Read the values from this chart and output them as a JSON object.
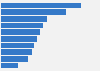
{
  "values": [
    97,
    78,
    56,
    51,
    47,
    44,
    40,
    37,
    33,
    20
  ],
  "bar_color": "#3579c8",
  "background_color": "#f2f2f2",
  "plot_background": "#f2f2f2",
  "grid_color": "#ffffff",
  "xlim": [
    0,
    110
  ],
  "bar_height": 0.82,
  "n_bars": 10
}
